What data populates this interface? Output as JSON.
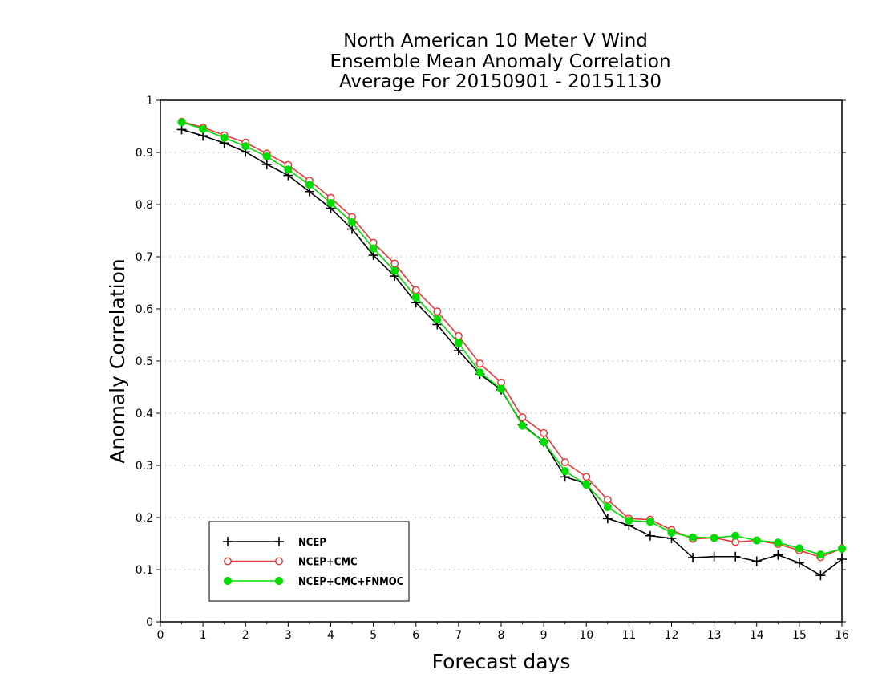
{
  "chart_data": {
    "type": "line",
    "title": [
      "North American 10 Meter V Wind",
      "Ensemble Mean Anomaly Correlation",
      "Average For 20150901 - 20151130"
    ],
    "xlabel": "Forecast days",
    "ylabel": "Anomaly Correlation",
    "xlim": [
      0,
      16
    ],
    "ylim": [
      0,
      1
    ],
    "xticks": [
      "0",
      "1",
      "2",
      "3",
      "4",
      "5",
      "6",
      "7",
      "8",
      "9",
      "10",
      "11",
      "12",
      "13",
      "14",
      "15",
      "16"
    ],
    "yticks": [
      "0",
      "0.1",
      "0.2",
      "0.3",
      "0.4",
      "0.5",
      "0.6",
      "0.7",
      "0.8",
      "0.9",
      "1"
    ],
    "grid": "horizontal dotted",
    "legend_position": "bottom-left",
    "x": [
      0.5,
      1,
      1.5,
      2,
      2.5,
      3,
      3.5,
      4,
      4.5,
      5,
      5.5,
      6,
      6.5,
      7,
      7.5,
      8,
      8.5,
      9,
      9.5,
      10,
      10.5,
      11,
      11.5,
      12,
      12.5,
      13,
      13.5,
      14,
      14.5,
      15,
      15.5,
      16
    ],
    "series": [
      {
        "name": "NCEP",
        "color": "#000000",
        "marker": "plus",
        "values": [
          0.944,
          0.932,
          0.918,
          0.901,
          0.877,
          0.856,
          0.825,
          0.793,
          0.753,
          0.703,
          0.663,
          0.612,
          0.57,
          0.52,
          0.475,
          0.445,
          0.378,
          0.345,
          0.278,
          0.265,
          0.198,
          0.185,
          0.165,
          0.16,
          0.123,
          0.125,
          0.125,
          0.116,
          0.128,
          0.113,
          0.089,
          0.12
        ]
      },
      {
        "name": "NCEP+CMC",
        "color": "#e83a3a",
        "marker": "open-circle",
        "values": [
          0.959,
          0.948,
          0.933,
          0.919,
          0.898,
          0.876,
          0.846,
          0.813,
          0.776,
          0.727,
          0.687,
          0.636,
          0.595,
          0.548,
          0.495,
          0.459,
          0.392,
          0.362,
          0.306,
          0.278,
          0.234,
          0.198,
          0.196,
          0.176,
          0.159,
          0.161,
          0.153,
          0.156,
          0.149,
          0.137,
          0.124,
          0.141
        ]
      },
      {
        "name": "NCEP+CMC+FNMOC",
        "color": "#00dd00",
        "marker": "filled-circle",
        "values": [
          0.958,
          0.945,
          0.928,
          0.912,
          0.892,
          0.867,
          0.838,
          0.803,
          0.766,
          0.716,
          0.673,
          0.622,
          0.58,
          0.535,
          0.478,
          0.447,
          0.376,
          0.345,
          0.289,
          0.263,
          0.22,
          0.194,
          0.192,
          0.171,
          0.162,
          0.161,
          0.165,
          0.156,
          0.152,
          0.141,
          0.129,
          0.14
        ]
      }
    ]
  }
}
